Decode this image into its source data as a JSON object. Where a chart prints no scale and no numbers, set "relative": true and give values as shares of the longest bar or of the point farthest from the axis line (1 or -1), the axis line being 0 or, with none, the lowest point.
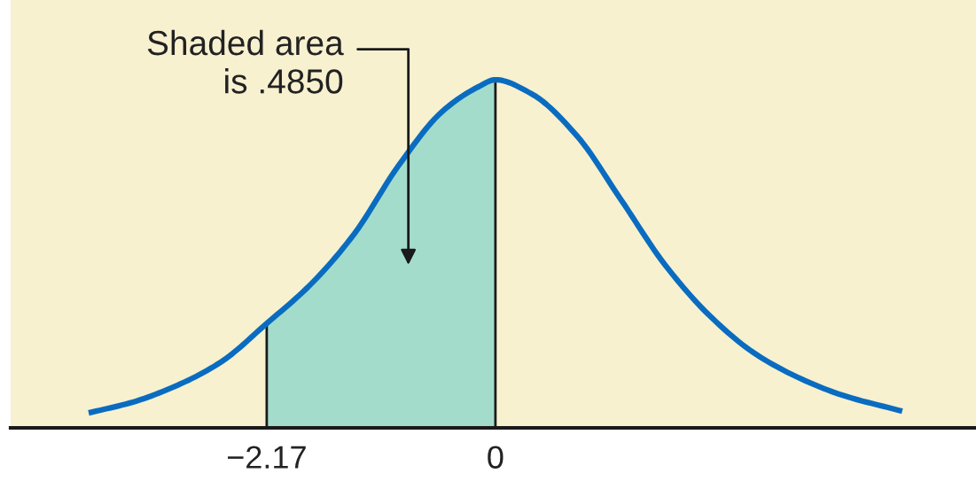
{
  "chart_data": {
    "type": "line",
    "relative": true,
    "xlim": [
      -4.6,
      4.56
    ],
    "xticks": [
      {
        "value": -2.17,
        "label": "−2.17"
      },
      0
    ],
    "series": [
      {
        "color": "#0a6cc0",
        "x": [
          -3.86,
          -3.44,
          -3.02,
          -2.6,
          -2.17,
          -1.76,
          -1.34,
          -0.92,
          -0.5,
          -0.16,
          0,
          0.34,
          0.77,
          1.19,
          1.61,
          2.03,
          2.45,
          2.87,
          3.29,
          3.86
        ],
        "values": [
          0.043,
          0.074,
          0.122,
          0.19,
          0.3,
          0.41,
          0.557,
          0.753,
          0.91,
          0.98,
          1.0,
          0.96,
          0.84,
          0.656,
          0.468,
          0.323,
          0.216,
          0.145,
          0.094,
          0.048
        ]
      },
      {
        "type": "area",
        "color": "#a3dccb",
        "x": [
          -2.17,
          -1.76,
          -1.34,
          -0.92,
          -0.5,
          -0.16,
          0
        ],
        "values": [
          0.3,
          0.41,
          0.557,
          0.753,
          0.91,
          0.98,
          1.0
        ]
      }
    ],
    "ref_lines": [
      {
        "axis": "x",
        "value": -2.17,
        "color": "#1a1a1a"
      },
      {
        "axis": "x",
        "value": 0,
        "color": "#1a1a1a"
      }
    ],
    "annotations": [
      "Shaded area\nis .4850"
    ],
    "legend": false
  }
}
